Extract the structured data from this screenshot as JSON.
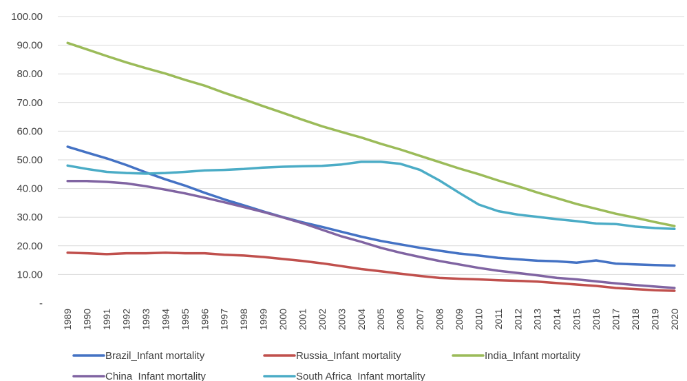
{
  "chart_data": {
    "type": "line",
    "title": "",
    "xlabel": "",
    "ylabel": "",
    "ylim": [
      0,
      100
    ],
    "ytick_labels": [
      "-",
      "10.00",
      "20.00",
      "30.00",
      "40.00",
      "50.00",
      "60.00",
      "70.00",
      "80.00",
      "90.00",
      "100.00"
    ],
    "grid": true,
    "legend_position": "bottom",
    "x": [
      "1989",
      "1990",
      "1991",
      "1992",
      "1993",
      "1994",
      "1995",
      "1996",
      "1997",
      "1998",
      "1999",
      "2000",
      "2001",
      "2002",
      "2003",
      "2004",
      "2005",
      "2006",
      "2007",
      "2008",
      "2009",
      "2010",
      "2011",
      "2012",
      "2013",
      "2014",
      "2015",
      "2016",
      "2017",
      "2018",
      "2019",
      "2020"
    ],
    "series": [
      {
        "name": "Brazil_Infant mortality",
        "color": "#4472c4",
        "values": [
          54.6,
          52.5,
          50.5,
          48.2,
          45.6,
          43.2,
          41.0,
          38.5,
          36.2,
          34.1,
          32.0,
          30.0,
          28.2,
          26.6,
          24.9,
          23.2,
          21.7,
          20.5,
          19.3,
          18.3,
          17.3,
          16.6,
          15.8,
          15.3,
          14.8,
          14.6,
          14.1,
          14.9,
          13.8,
          13.5,
          13.3,
          13.1
        ]
      },
      {
        "name": "Russia_Infant mortality",
        "color": "#c0504d",
        "values": [
          17.6,
          17.4,
          17.1,
          17.4,
          17.4,
          17.6,
          17.4,
          17.4,
          16.9,
          16.6,
          16.1,
          15.4,
          14.7,
          13.9,
          12.9,
          11.9,
          11.1,
          10.3,
          9.5,
          8.8,
          8.5,
          8.3,
          8.0,
          7.8,
          7.5,
          7.0,
          6.5,
          6.0,
          5.3,
          4.9,
          4.5,
          4.3
        ]
      },
      {
        "name": "India_Infant mortality",
        "color": "#9bbb59",
        "values": [
          90.8,
          88.5,
          86.2,
          84.0,
          82.0,
          80.1,
          77.9,
          75.9,
          73.4,
          71.1,
          68.7,
          66.4,
          64.0,
          61.7,
          59.7,
          57.8,
          55.6,
          53.6,
          51.4,
          49.2,
          47.0,
          45.0,
          42.8,
          40.8,
          38.6,
          36.6,
          34.6,
          32.9,
          31.2,
          29.8,
          28.3,
          26.9
        ]
      },
      {
        "name": "China_Infant mortality",
        "color": "#8064a2",
        "values": [
          42.6,
          42.6,
          42.3,
          41.8,
          40.8,
          39.6,
          38.3,
          36.8,
          35.2,
          33.5,
          31.8,
          29.9,
          27.9,
          25.6,
          23.3,
          21.4,
          19.3,
          17.6,
          16.1,
          14.7,
          13.5,
          12.3,
          11.3,
          10.5,
          9.7,
          8.8,
          8.3,
          7.6,
          6.9,
          6.3,
          5.8,
          5.3
        ]
      },
      {
        "name": "South Africa_Infant mortality",
        "color": "#4bacc6",
        "values": [
          48.0,
          46.8,
          45.8,
          45.4,
          45.2,
          45.4,
          45.8,
          46.3,
          46.5,
          46.8,
          47.3,
          47.6,
          47.8,
          47.9,
          48.4,
          49.3,
          49.3,
          48.6,
          46.5,
          42.8,
          38.5,
          34.4,
          32.1,
          30.9,
          30.1,
          29.3,
          28.6,
          27.8,
          27.6,
          26.7,
          26.2,
          25.9
        ]
      }
    ]
  }
}
